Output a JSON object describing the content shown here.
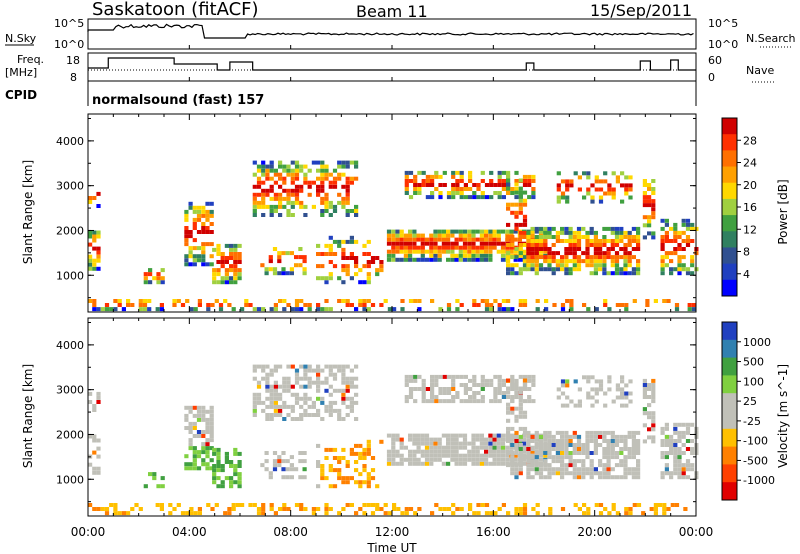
{
  "header": {
    "station": "Saskatoon (fitACF)",
    "beam": "Beam 11",
    "date": "15/Sep/2011"
  },
  "noise_panel": {
    "left_label": "N.Sky",
    "right_label": "N.Search",
    "left_ticks": [
      "10^5",
      "10^0"
    ],
    "right_ticks": [
      "10^5",
      "10^0"
    ]
  },
  "freq_panel": {
    "left_label_1": "Freq.",
    "left_label_2": "[MHz]",
    "right_label": "Nave",
    "left_ticks": [
      "18",
      "8"
    ],
    "right_ticks": [
      "60",
      "0"
    ],
    "cpid_label": "CPID",
    "cpid_value": "normalsound (fast) 157"
  },
  "chart_data": [
    {
      "type": "heatmap",
      "title": "",
      "ylabel": "Slant Range [km]",
      "xlabel": "",
      "y_ticks": [
        "4000",
        "3000",
        "2000",
        "1000"
      ],
      "ylim": [
        180,
        4600
      ],
      "colorbar": {
        "label": "Power [dB]",
        "ticks": [
          "28",
          "24",
          "20",
          "16",
          "12",
          "8",
          "4"
        ],
        "colors": [
          "#d00000",
          "#ff3000",
          "#ff7000",
          "#ffa000",
          "#ffd800",
          "#a0d040",
          "#40a040",
          "#308060",
          "#305090",
          "#2040c0",
          "#0000ff"
        ]
      }
    },
    {
      "type": "heatmap",
      "title": "",
      "ylabel": "Slant Range [km]",
      "xlabel": "Time UT",
      "y_ticks": [
        "4000",
        "3000",
        "2000",
        "1000"
      ],
      "ylim": [
        180,
        4600
      ],
      "x_ticks": [
        "00:00",
        "04:00",
        "08:00",
        "12:00",
        "16:00",
        "20:00",
        "00:00"
      ],
      "colorbar": {
        "label": "Velocity [m s^-1]",
        "ticks": [
          "1000",
          "500",
          "100",
          "25",
          "-25",
          "-100",
          "-500",
          "-1000"
        ],
        "colors": [
          "#2040c0",
          "#3080b0",
          "#40a040",
          "#80d040",
          "#c0c0b8",
          "#c0c0b8",
          "#ffc000",
          "#ff8000",
          "#ff4000",
          "#e00000"
        ]
      }
    }
  ]
}
